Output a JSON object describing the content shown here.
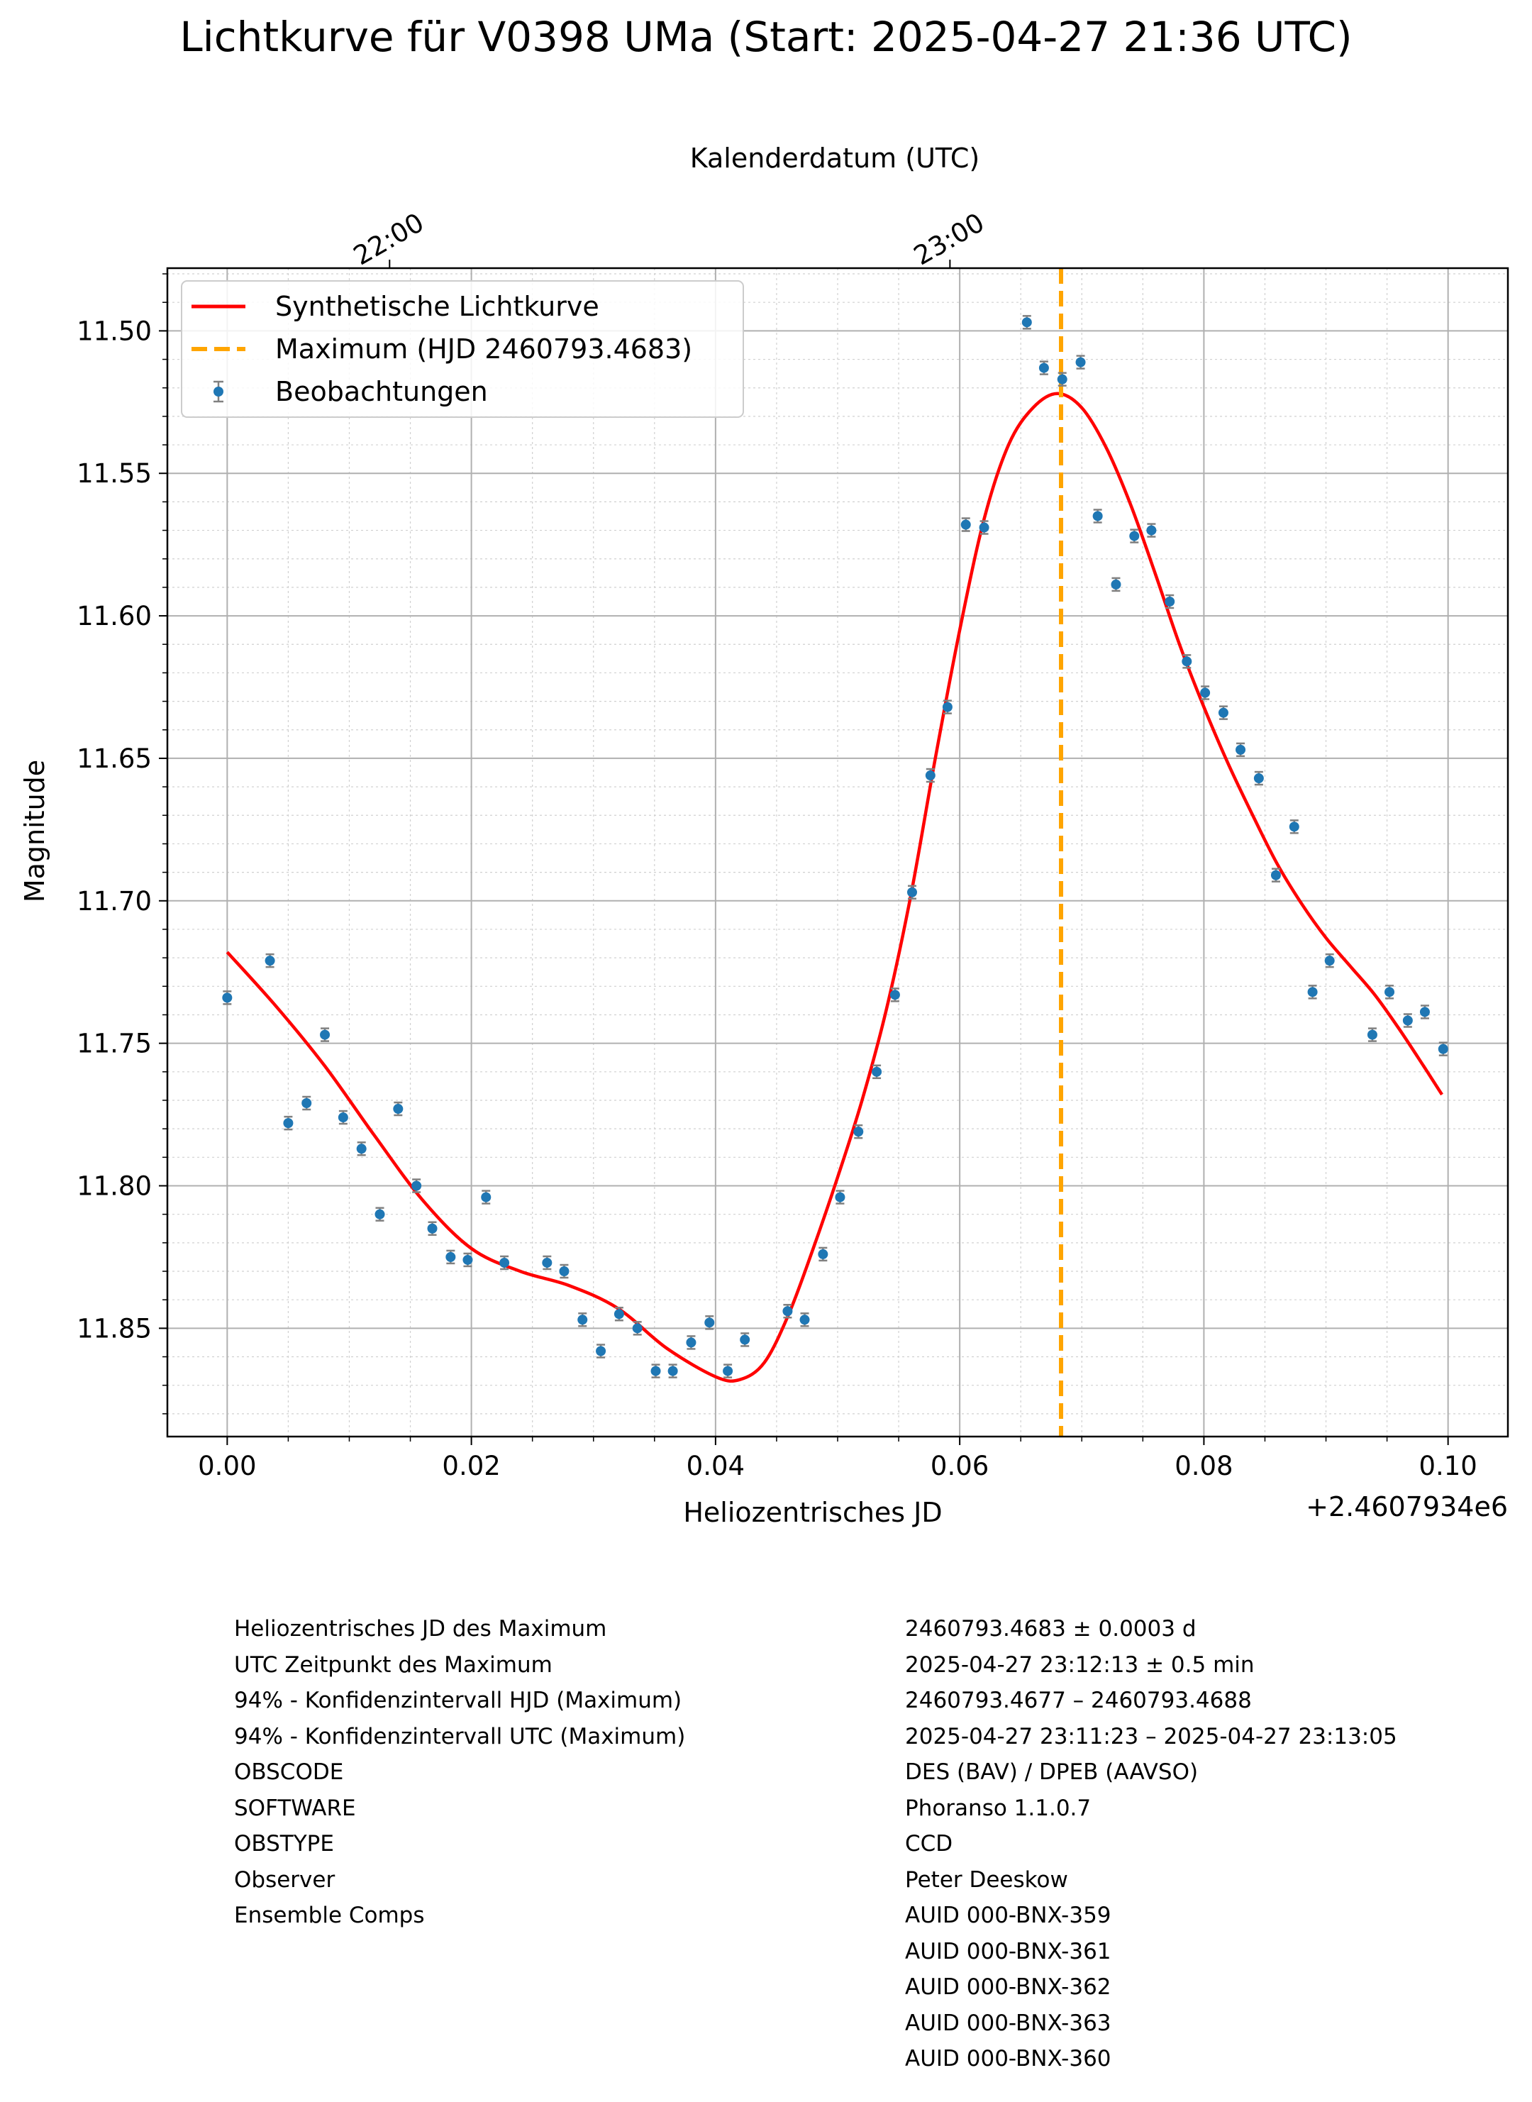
{
  "chart_data": {
    "type": "scatter",
    "title": "Lichtkurve für V0398 UMa (Start: 2025-04-27 21:36 UTC)",
    "xlabel": "Heliozentrisches JD",
    "ylabel": "Magnitude",
    "x_offset_label": "+2.4607934e6",
    "x_top_label": "Kalenderdatum (UTC)",
    "x_top_ticks": [
      {
        "label": "22:00",
        "x": 0.0133
      },
      {
        "label": "23:00",
        "x": 0.0592
      }
    ],
    "xlim": [
      -0.0049,
      0.1049
    ],
    "ylim": [
      11.478,
      11.888
    ],
    "y_inverted": true,
    "x_ticks": [
      {
        "value": 0.0,
        "label": "0.00"
      },
      {
        "value": 0.02,
        "label": "0.02"
      },
      {
        "value": 0.04,
        "label": "0.04"
      },
      {
        "value": 0.06,
        "label": "0.06"
      },
      {
        "value": 0.08,
        "label": "0.08"
      },
      {
        "value": 0.1,
        "label": "0.10"
      }
    ],
    "y_ticks": [
      {
        "value": 11.5,
        "label": "11.50"
      },
      {
        "value": 11.55,
        "label": "11.55"
      },
      {
        "value": 11.6,
        "label": "11.60"
      },
      {
        "value": 11.65,
        "label": "11.65"
      },
      {
        "value": 11.7,
        "label": "11.70"
      },
      {
        "value": 11.75,
        "label": "11.75"
      },
      {
        "value": 11.8,
        "label": "11.80"
      },
      {
        "value": 11.85,
        "label": "11.85"
      }
    ],
    "grid": true,
    "minor_grid": true,
    "legend_position": "top-left",
    "legend": [
      {
        "label": "Synthetische Lichtkurve",
        "color": "#ff0000",
        "style": "line"
      },
      {
        "label": "Maximum (HJD 2460793.4683)",
        "color": "#ffa500",
        "style": "dashed"
      },
      {
        "label": "Beobachtungen",
        "color": "#1f77b4",
        "style": "errorbar"
      }
    ],
    "maximum_x": 0.0683,
    "point_color": "#1f77b4",
    "errorbar_color": "#808080",
    "curve_color": "#ff0000",
    "max_line_color": "#ffa500",
    "observations": [
      {
        "x": 0.0,
        "y": 11.734
      },
      {
        "x": 0.0035,
        "y": 11.721
      },
      {
        "x": 0.005,
        "y": 11.778
      },
      {
        "x": 0.0065,
        "y": 11.771
      },
      {
        "x": 0.008,
        "y": 11.747
      },
      {
        "x": 0.0095,
        "y": 11.776
      },
      {
        "x": 0.011,
        "y": 11.787
      },
      {
        "x": 0.0125,
        "y": 11.81
      },
      {
        "x": 0.014,
        "y": 11.773
      },
      {
        "x": 0.0155,
        "y": 11.8
      },
      {
        "x": 0.0168,
        "y": 11.815
      },
      {
        "x": 0.0183,
        "y": 11.825
      },
      {
        "x": 0.0197,
        "y": 11.826
      },
      {
        "x": 0.0212,
        "y": 11.804
      },
      {
        "x": 0.0227,
        "y": 11.827
      },
      {
        "x": 0.0262,
        "y": 11.827
      },
      {
        "x": 0.0276,
        "y": 11.83
      },
      {
        "x": 0.0291,
        "y": 11.847
      },
      {
        "x": 0.0306,
        "y": 11.858
      },
      {
        "x": 0.0321,
        "y": 11.845
      },
      {
        "x": 0.0336,
        "y": 11.85
      },
      {
        "x": 0.0351,
        "y": 11.865
      },
      {
        "x": 0.0365,
        "y": 11.865
      },
      {
        "x": 0.038,
        "y": 11.855
      },
      {
        "x": 0.0395,
        "y": 11.848
      },
      {
        "x": 0.041,
        "y": 11.865
      },
      {
        "x": 0.0424,
        "y": 11.854
      },
      {
        "x": 0.0459,
        "y": 11.844
      },
      {
        "x": 0.0473,
        "y": 11.847
      },
      {
        "x": 0.0488,
        "y": 11.824
      },
      {
        "x": 0.0502,
        "y": 11.804
      },
      {
        "x": 0.0517,
        "y": 11.781
      },
      {
        "x": 0.0532,
        "y": 11.76
      },
      {
        "x": 0.0547,
        "y": 11.733
      },
      {
        "x": 0.0561,
        "y": 11.697
      },
      {
        "x": 0.0576,
        "y": 11.656
      },
      {
        "x": 0.059,
        "y": 11.632
      },
      {
        "x": 0.0605,
        "y": 11.568
      },
      {
        "x": 0.062,
        "y": 11.569
      },
      {
        "x": 0.0655,
        "y": 11.497
      },
      {
        "x": 0.0669,
        "y": 11.513
      },
      {
        "x": 0.0684,
        "y": 11.517
      },
      {
        "x": 0.0699,
        "y": 11.511
      },
      {
        "x": 0.0713,
        "y": 11.565
      },
      {
        "x": 0.0728,
        "y": 11.589
      },
      {
        "x": 0.0743,
        "y": 11.572
      },
      {
        "x": 0.0757,
        "y": 11.57
      },
      {
        "x": 0.0772,
        "y": 11.595
      },
      {
        "x": 0.0786,
        "y": 11.616
      },
      {
        "x": 0.0801,
        "y": 11.627
      },
      {
        "x": 0.0816,
        "y": 11.634
      },
      {
        "x": 0.083,
        "y": 11.647
      },
      {
        "x": 0.0845,
        "y": 11.657
      },
      {
        "x": 0.0859,
        "y": 11.691
      },
      {
        "x": 0.0874,
        "y": 11.674
      },
      {
        "x": 0.0889,
        "y": 11.732
      },
      {
        "x": 0.0903,
        "y": 11.721
      },
      {
        "x": 0.0938,
        "y": 11.747
      },
      {
        "x": 0.0952,
        "y": 11.732
      },
      {
        "x": 0.0967,
        "y": 11.742
      },
      {
        "x": 0.0981,
        "y": 11.739
      },
      {
        "x": 0.0996,
        "y": 11.752
      }
    ],
    "curve": [
      {
        "x": 0.0,
        "y": 11.718
      },
      {
        "x": 0.004,
        "y": 11.737
      },
      {
        "x": 0.008,
        "y": 11.758
      },
      {
        "x": 0.012,
        "y": 11.782
      },
      {
        "x": 0.016,
        "y": 11.805
      },
      {
        "x": 0.02,
        "y": 11.822
      },
      {
        "x": 0.024,
        "y": 11.83
      },
      {
        "x": 0.028,
        "y": 11.835
      },
      {
        "x": 0.032,
        "y": 11.843
      },
      {
        "x": 0.036,
        "y": 11.857
      },
      {
        "x": 0.04,
        "y": 11.867
      },
      {
        "x": 0.042,
        "y": 11.868
      },
      {
        "x": 0.044,
        "y": 11.862
      },
      {
        "x": 0.046,
        "y": 11.845
      },
      {
        "x": 0.048,
        "y": 11.822
      },
      {
        "x": 0.05,
        "y": 11.797
      },
      {
        "x": 0.052,
        "y": 11.77
      },
      {
        "x": 0.054,
        "y": 11.738
      },
      {
        "x": 0.056,
        "y": 11.698
      },
      {
        "x": 0.058,
        "y": 11.65
      },
      {
        "x": 0.06,
        "y": 11.605
      },
      {
        "x": 0.062,
        "y": 11.566
      },
      {
        "x": 0.064,
        "y": 11.54
      },
      {
        "x": 0.066,
        "y": 11.527
      },
      {
        "x": 0.068,
        "y": 11.522
      },
      {
        "x": 0.07,
        "y": 11.527
      },
      {
        "x": 0.072,
        "y": 11.541
      },
      {
        "x": 0.074,
        "y": 11.561
      },
      {
        "x": 0.076,
        "y": 11.585
      },
      {
        "x": 0.078,
        "y": 11.61
      },
      {
        "x": 0.08,
        "y": 11.632
      },
      {
        "x": 0.082,
        "y": 11.652
      },
      {
        "x": 0.084,
        "y": 11.67
      },
      {
        "x": 0.086,
        "y": 11.687
      },
      {
        "x": 0.088,
        "y": 11.701
      },
      {
        "x": 0.09,
        "y": 11.713
      },
      {
        "x": 0.092,
        "y": 11.723
      },
      {
        "x": 0.094,
        "y": 11.733
      },
      {
        "x": 0.096,
        "y": 11.745
      },
      {
        "x": 0.098,
        "y": 11.758
      },
      {
        "x": 0.0995,
        "y": 11.768
      }
    ]
  },
  "info_table": [
    {
      "label": "Heliozentrisches JD des Maximum",
      "value": "2460793.4683 ± 0.0003 d"
    },
    {
      "label": "UTC Zeitpunkt des Maximum",
      "value": "2025-04-27 23:12:13 ± 0.5 min"
    },
    {
      "label": "94% - Konfidenzintervall HJD (Maximum)",
      "value": "2460793.4677 – 2460793.4688"
    },
    {
      "label": "94% - Konfidenzintervall UTC (Maximum)",
      "value": "2025-04-27 23:11:23 – 2025-04-27 23:13:05"
    },
    {
      "label": "OBSCODE",
      "value": "DES (BAV) / DPEB (AAVSO)"
    },
    {
      "label": "SOFTWARE",
      "value": "Phoranso 1.1.0.7"
    },
    {
      "label": "OBSTYPE",
      "value": "CCD"
    },
    {
      "label": "Observer",
      "value": "Peter Deeskow"
    },
    {
      "label": "Ensemble Comps",
      "value": "AUID 000-BNX-359"
    },
    {
      "label": "",
      "value": "AUID 000-BNX-361"
    },
    {
      "label": "",
      "value": "AUID 000-BNX-362"
    },
    {
      "label": "",
      "value": "AUID 000-BNX-363"
    },
    {
      "label": "",
      "value": "AUID 000-BNX-360"
    }
  ]
}
